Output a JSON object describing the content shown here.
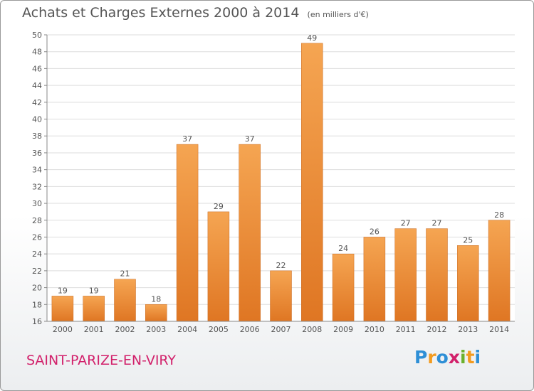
{
  "title": {
    "main": "Achats et Charges Externes 2000 à 2014",
    "unit": "(en milliers d'€)"
  },
  "commune": "SAINT-PARIZE-EN-VIRY",
  "logo": {
    "text": "Proxiti",
    "letters": [
      {
        "char": "P",
        "color": "#2e8fd6"
      },
      {
        "char": "r",
        "color": "#f39b1f"
      },
      {
        "char": "o",
        "color": "#2e8fd6"
      },
      {
        "char": "x",
        "color": "#d2216b"
      },
      {
        "char": "i",
        "color": "#6bb12d"
      },
      {
        "char": "t",
        "color": "#f39b1f"
      },
      {
        "char": "i",
        "color": "#2e8fd6"
      }
    ]
  },
  "colors": {
    "bar_top": "#f5a552",
    "bar_bottom": "#df7623",
    "bar_edge": "#c96a20",
    "grid": "#dddddd",
    "axis": "#888888",
    "text": "#555555",
    "commune": "#d2216b"
  },
  "chart_data": {
    "type": "bar",
    "title": "Achats et Charges Externes 2000 à 2014",
    "subtitle": "(en milliers d'€)",
    "xlabel": "",
    "ylabel": "",
    "categories": [
      "2000",
      "2001",
      "2002",
      "2003",
      "2004",
      "2005",
      "2006",
      "2007",
      "2008",
      "2009",
      "2010",
      "2011",
      "2012",
      "2013",
      "2014"
    ],
    "values": [
      19,
      19,
      21,
      18,
      37,
      29,
      37,
      22,
      49,
      24,
      26,
      27,
      27,
      25,
      28
    ],
    "ylim": [
      16,
      50
    ],
    "yticks": [
      16,
      18,
      20,
      22,
      24,
      26,
      28,
      30,
      32,
      34,
      36,
      38,
      40,
      42,
      44,
      46,
      48,
      50
    ],
    "grid": true,
    "legend": "none"
  }
}
